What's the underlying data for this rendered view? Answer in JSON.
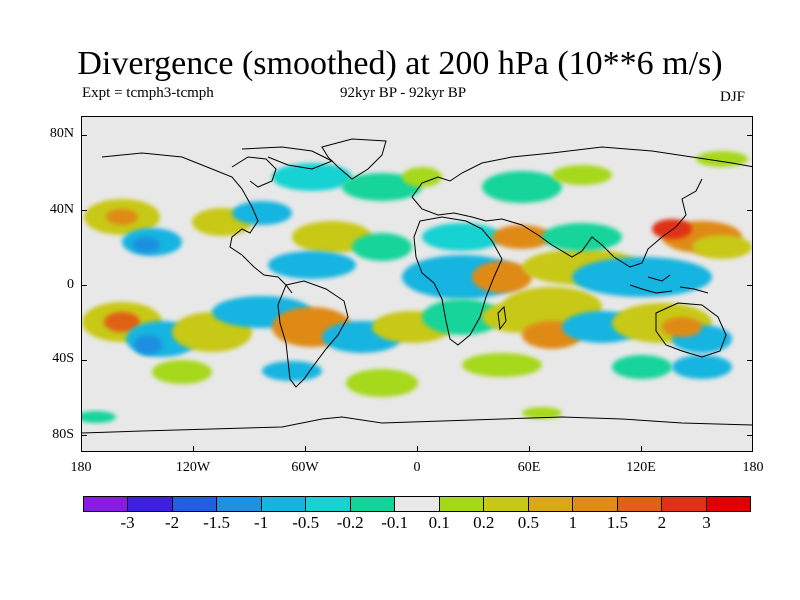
{
  "title": "Divergence (smoothed) at 200 hPa (10**6 m/s)",
  "experiment": "Expt = tcmph3-tcmph",
  "period": "92kyr BP - 92kyr BP",
  "season": "DJF",
  "lat_labels": [
    "80N",
    "40N",
    "0",
    "40S",
    "80S"
  ],
  "lon_labels": [
    "180",
    "120W",
    "60W",
    "0",
    "60E",
    "120E",
    "180"
  ],
  "colorbar": {
    "labels": [
      "-3",
      "-2",
      "-1.5",
      "-1",
      "-0.5",
      "-0.2",
      "-0.1",
      "0.1",
      "0.2",
      "0.5",
      "1",
      "1.5",
      "2",
      "3"
    ],
    "colors": [
      "#8a1be2",
      "#3f1fe0",
      "#1f5fe0",
      "#1e90e0",
      "#18b4e0",
      "#18d2d2",
      "#12d49a",
      "#e8e8e8",
      "#a6d81a",
      "#c8c818",
      "#d8a818",
      "#e08a18",
      "#e06018",
      "#e03018",
      "#e00000"
    ]
  }
}
